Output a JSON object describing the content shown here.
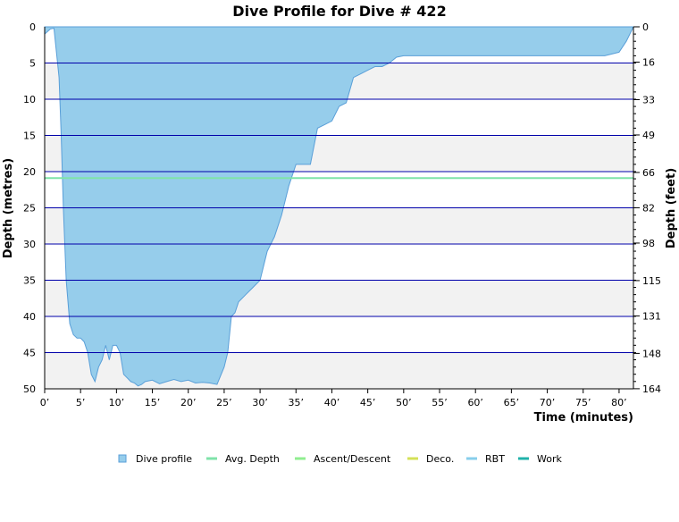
{
  "chart_data": {
    "type": "area",
    "title": "Dive Profile for Dive # 422",
    "xlabel": "Time (minutes)",
    "ylabel": "Depth (metres)",
    "y2label": "Depth (feet)",
    "xlim": [
      0,
      82
    ],
    "ylim": [
      0,
      50
    ],
    "y_inverted": true,
    "x_ticks": [
      0,
      5,
      10,
      15,
      20,
      25,
      30,
      35,
      40,
      45,
      50,
      55,
      60,
      65,
      70,
      75,
      80
    ],
    "x_tick_labels": [
      "0’",
      "5’",
      "10’",
      "15’",
      "20’",
      "25’",
      "30’",
      "35’",
      "40’",
      "45’",
      "50’",
      "55’",
      "60’",
      "65’",
      "70’",
      "75’",
      "80’"
    ],
    "y_ticks": [
      0,
      5,
      10,
      15,
      20,
      25,
      30,
      35,
      40,
      45,
      50
    ],
    "y2_ticks": [
      0,
      16,
      33,
      49,
      66,
      82,
      98,
      115,
      131,
      148,
      164
    ],
    "grid": true,
    "alternating_bands": true,
    "legend_position": "bottom",
    "colors": {
      "dive_profile": "#96cdeb",
      "dive_profile_edge": "#5a9fd8",
      "avg_depth": "#7fe3a9",
      "ascent_descent": "#90ee90",
      "deco": "#d4e157",
      "rbt": "#87ceeb",
      "work": "#20b2aa",
      "grid": "#0000aa",
      "band": "#f2f2f2"
    },
    "series": [
      {
        "name": "Dive profile",
        "x": [
          0,
          0.8,
          1.3,
          2,
          2.3,
          2.6,
          3,
          3.5,
          4,
          4.5,
          5,
          5.5,
          6,
          6.5,
          7,
          7.5,
          8,
          8.5,
          9,
          9.5,
          10,
          10.5,
          11,
          11.5,
          12,
          12.5,
          13,
          13.5,
          14,
          15,
          16,
          17,
          18,
          19,
          20,
          21,
          22,
          23,
          24,
          25,
          25.5,
          26,
          26.5,
          27,
          28,
          29,
          30,
          31,
          32,
          33,
          34,
          35,
          36,
          37,
          38,
          39,
          40,
          41,
          42,
          43,
          44,
          45,
          46,
          47,
          48,
          49,
          50,
          51,
          52,
          55,
          60,
          65,
          70,
          75,
          78,
          80,
          81,
          82
        ],
        "y": [
          1,
          0.3,
          0.2,
          7,
          15,
          25,
          35,
          41,
          42.5,
          43,
          43,
          43.5,
          45,
          48,
          49,
          47,
          46,
          44,
          46,
          44,
          44,
          45,
          48,
          48.5,
          49,
          49.2,
          49.6,
          49.4,
          49,
          48.8,
          49.3,
          49,
          48.7,
          49,
          48.8,
          49.2,
          49.1,
          49.2,
          49.4,
          47,
          45,
          40,
          39.5,
          38,
          37,
          36,
          35,
          31,
          29,
          26,
          22,
          19,
          19,
          19,
          14,
          13.5,
          13,
          11,
          10.5,
          7,
          6.5,
          6,
          5.5,
          5.5,
          5,
          4.2,
          4,
          4,
          4,
          4,
          4,
          4,
          4,
          4,
          4,
          3.5,
          2,
          0
        ]
      },
      {
        "name": "Avg. Depth",
        "value": 20.9
      },
      {
        "name": "Ascent/Descent"
      },
      {
        "name": "Deco."
      },
      {
        "name": "RBT"
      },
      {
        "name": "Work"
      }
    ]
  }
}
